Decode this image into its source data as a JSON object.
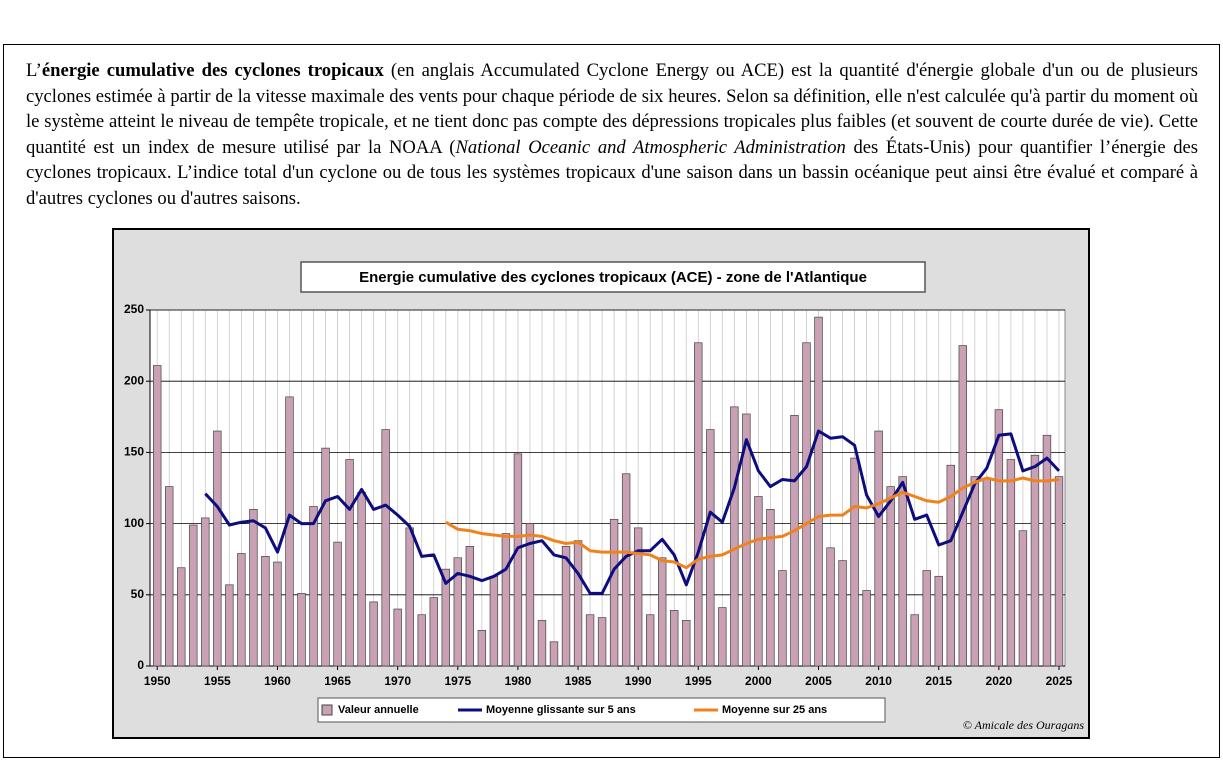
{
  "paragraph": [
    {
      "text": "L’",
      "style": "normal"
    },
    {
      "text": "énergie cumulative des cyclones tropicaux",
      "style": "bold"
    },
    {
      "text": " (en anglais Accumulated Cyclone Energy ou ACE) est la quantité d'énergie globale d'un ou de plusieurs cyclones estimée à partir de la vitesse maximale des vents pour chaque période de six heures. Selon sa définition, elle n'est calculée qu'à partir du moment où le système atteint le niveau de tempête tropicale, et ne tient donc pas compte des dépressions tropicales plus faibles (et souvent de courte durée de vie). Cette quantité est un index de mesure utilisé par la NOAA (",
      "style": "normal"
    },
    {
      "text": "National Oceanic and Atmospheric Administration",
      "style": "italic"
    },
    {
      "text": " des États-Unis) pour quantifier l’énergie des cyclones tropicaux. L’indice total d'un cyclone ou de tous les systèmes tropicaux d'une saison dans un bassin océanique peut ainsi être évalué et comparé à d'autres cyclones ou d'autres saisons.",
      "style": "normal"
    }
  ],
  "chart_data": {
    "type": "bar",
    "title": "Energie cumulative des cyclones tropicaux (ACE) - zone de l'Atlantique",
    "credit": "© Amicale des Ouragans",
    "x": [
      1950,
      1951,
      1952,
      1953,
      1954,
      1955,
      1956,
      1957,
      1958,
      1959,
      1960,
      1961,
      1962,
      1963,
      1964,
      1965,
      1966,
      1967,
      1968,
      1969,
      1970,
      1971,
      1972,
      1973,
      1974,
      1975,
      1976,
      1977,
      1978,
      1979,
      1980,
      1981,
      1982,
      1983,
      1984,
      1985,
      1986,
      1987,
      1988,
      1989,
      1990,
      1991,
      1992,
      1993,
      1994,
      1995,
      1996,
      1997,
      1998,
      1999,
      2000,
      2001,
      2002,
      2003,
      2004,
      2005,
      2006,
      2007,
      2008,
      2009,
      2010,
      2011,
      2012,
      2013,
      2014,
      2015,
      2016,
      2017,
      2018,
      2019,
      2020,
      2021,
      2022,
      2023,
      2024,
      2025
    ],
    "xlim": [
      1949.4,
      2025.5
    ],
    "xticks": [
      1950,
      1955,
      1960,
      1965,
      1970,
      1975,
      1980,
      1985,
      1990,
      1995,
      2000,
      2005,
      2010,
      2015,
      2020,
      2025
    ],
    "ylim": [
      0,
      250
    ],
    "yticks": [
      0,
      50,
      100,
      150,
      200,
      250
    ],
    "grid": true,
    "series": [
      {
        "name": "Valeur annuelle",
        "type": "bar",
        "color": "#c9a0b4",
        "values": [
          211,
          126,
          69,
          99,
          104,
          165,
          57,
          79,
          110,
          77,
          73,
          189,
          51,
          112,
          153,
          87,
          145,
          122,
          45,
          166,
          40,
          97,
          36,
          48,
          68,
          76,
          84,
          25,
          63,
          93,
          149,
          100,
          32,
          17,
          84,
          88,
          36,
          34,
          103,
          135,
          97,
          36,
          76,
          39,
          32,
          227,
          166,
          41,
          182,
          177,
          119,
          110,
          67,
          176,
          227,
          245,
          83,
          74,
          146,
          53,
          165,
          126,
          133,
          36,
          67,
          63,
          141,
          225,
          133,
          132,
          180,
          145,
          95,
          148,
          162,
          133
        ]
      },
      {
        "name": "Moyenne glissante sur 5 ans",
        "type": "line",
        "color": "#0d0d80",
        "values": [
          null,
          null,
          null,
          null,
          121,
          112,
          99,
          101,
          102,
          97,
          80,
          106,
          100,
          100,
          116,
          119,
          110,
          124,
          110,
          113,
          106,
          98,
          77,
          78,
          58,
          65,
          63,
          60,
          63,
          68,
          83,
          86,
          88,
          78,
          76,
          65,
          51,
          51,
          68,
          77,
          81,
          81,
          89,
          78,
          57,
          80,
          108,
          101,
          125,
          159,
          137,
          126,
          131,
          130,
          140,
          165,
          160,
          161,
          155,
          120,
          105,
          116,
          129,
          103,
          106,
          85,
          88,
          108,
          128,
          139,
          162,
          163,
          137,
          140,
          146,
          137
        ]
      },
      {
        "name": "Moyenne sur 25 ans",
        "type": "line",
        "color": "#f0821e",
        "values": [
          null,
          null,
          null,
          null,
          null,
          null,
          null,
          null,
          null,
          null,
          null,
          null,
          null,
          null,
          null,
          null,
          null,
          null,
          null,
          null,
          null,
          null,
          null,
          null,
          101,
          96,
          95,
          93,
          92,
          91,
          91,
          92,
          91,
          88,
          86,
          87,
          81,
          80,
          80,
          80,
          79,
          78,
          74,
          73,
          69,
          75,
          77,
          78,
          82,
          86,
          89,
          90,
          91,
          95,
          100,
          105,
          106,
          106,
          112,
          111,
          114,
          118,
          122,
          119,
          116,
          115,
          119,
          125,
          129,
          132,
          130,
          130,
          132,
          130,
          130,
          131
        ]
      }
    ]
  }
}
